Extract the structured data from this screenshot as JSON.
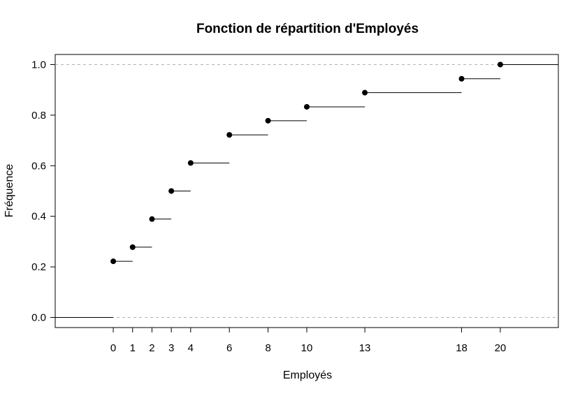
{
  "chart_data": {
    "type": "line",
    "title": "Fonction de répartition d'Employés",
    "xlabel": "Employés",
    "ylabel": "Fréquence",
    "xlim": [
      -3,
      23
    ],
    "ylim": [
      -0.04,
      1.04
    ],
    "x_ticks": [
      0,
      1,
      2,
      3,
      4,
      6,
      8,
      10,
      13,
      18,
      20
    ],
    "y_ticks": [
      "0.0",
      "0.2",
      "0.4",
      "0.6",
      "0.8",
      "1.0"
    ],
    "grid": false,
    "reference_lines": [
      0,
      1
    ],
    "series": [
      {
        "x": [
          0,
          1,
          2,
          3,
          4,
          6,
          8,
          10,
          13,
          18,
          20
        ],
        "y": [
          0.222,
          0.278,
          0.389,
          0.5,
          0.611,
          0.722,
          0.778,
          0.833,
          0.889,
          0.944,
          1.0
        ]
      }
    ]
  }
}
